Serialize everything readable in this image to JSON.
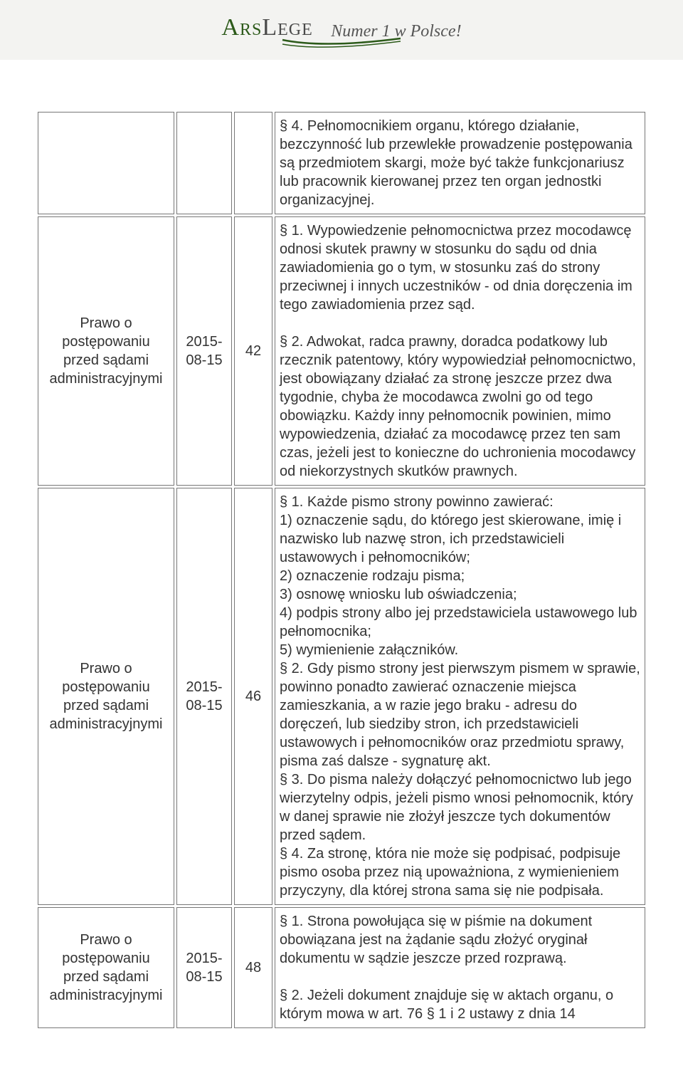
{
  "header": {
    "logo_ars": "Ars",
    "logo_lege": "Lege",
    "tagline": "Numer 1 w Polsce!",
    "logo_color_ars": "#2c5a1a",
    "logo_color_lege": "#4a4a4a",
    "swoosh_color": "#2c5a1a",
    "background": "#f3f3f1"
  },
  "table": {
    "border_color": "#777777",
    "font_size": 20,
    "rows": [
      {
        "title": "",
        "date": "",
        "article": "",
        "content": "§ 4. Pełnomocnikiem organu, którego działanie, bezczynność lub przewlekłe prowadzenie postępowania są przedmiotem skargi, może być także funkcjonariusz lub pracownik kierowanej przez ten organ jednostki organizacyjnej."
      },
      {
        "title": "Prawo o postępowaniu przed sądami administracyjnymi",
        "date": "2015-08-15",
        "article": "42",
        "content": "§ 1. Wypowiedzenie pełnomocnictwa przez mocodawcę odnosi skutek prawny w stosunku do sądu od dnia zawiadomienia go o tym, w stosunku zaś do strony przeciwnej i innych uczestników - od dnia doręczenia im tego zawiadomienia przez sąd.\n\n§ 2. Adwokat, radca prawny, doradca podatkowy lub rzecznik patentowy, który wypowiedział pełnomocnictwo, jest obowiązany działać za stronę jeszcze przez dwa tygodnie, chyba że mocodawca zwolni go od tego obowiązku. Każdy inny pełnomocnik powinien, mimo wypowiedzenia, działać za mocodawcę przez ten sam czas, jeżeli jest to konieczne do uchronienia mocodawcy od niekorzystnych skutków prawnych."
      },
      {
        "title": "Prawo o postępowaniu przed sądami administracyjnymi",
        "date": "2015-08-15",
        "article": "46",
        "content": "§ 1. Każde pismo strony powinno zawierać:\n1) oznaczenie sądu, do którego jest skierowane, imię i nazwisko lub nazwę stron, ich przedstawicieli ustawowych i pełnomocników;\n2) oznaczenie rodzaju pisma;\n3) osnowę wniosku lub oświadczenia;\n4) podpis strony albo jej przedstawiciela ustawowego lub pełnomocnika;\n5) wymienienie załączników.\n§ 2. Gdy pismo strony jest pierwszym pismem w sprawie, powinno ponadto zawierać oznaczenie miejsca zamieszkania, a w razie jego braku - adresu do doręczeń, lub siedziby stron, ich przedstawicieli ustawowych i pełnomocników oraz przedmiotu sprawy, pisma zaś dalsze - sygnaturę akt.\n§ 3. Do pisma należy dołączyć pełnomocnictwo lub jego wierzytelny odpis, jeżeli pismo wnosi pełnomocnik, który w danej sprawie nie złożył jeszcze tych dokumentów przed sądem.\n§ 4. Za stronę, która nie może się podpisać, podpisuje pismo osoba przez nią upoważniona, z wymienieniem przyczyny, dla której strona sama się nie podpisała."
      },
      {
        "title": "Prawo o postępowaniu przed sądami administracyjnymi",
        "date": "2015-08-15",
        "article": "48",
        "content": "§ 1. Strona powołująca się w piśmie na dokument obowiązana jest na żądanie sądu złożyć oryginał dokumentu w sądzie jeszcze przed rozprawą.\n\n§ 2. Jeżeli dokument znajduje się w aktach organu, o którym mowa w art. 76 § 1 i 2 ustawy z dnia 14"
      }
    ]
  }
}
